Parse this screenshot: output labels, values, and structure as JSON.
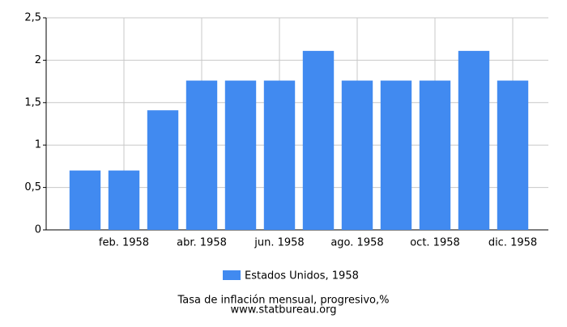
{
  "chart_data": {
    "type": "bar",
    "title": "Tasa de inflación mensual, progresivo,%",
    "source": "www.statbureau.org",
    "categories": [
      null,
      "feb. 1958",
      null,
      "abr. 1958",
      null,
      "jun. 1958",
      null,
      "ago. 1958",
      null,
      "oct. 1958",
      null,
      "dic. 1958"
    ],
    "series": [
      {
        "name": "Estados Unidos, 1958",
        "color": "#418af0",
        "values": [
          0.7,
          0.7,
          1.41,
          1.76,
          1.76,
          1.76,
          2.11,
          1.76,
          1.76,
          1.76,
          2.11,
          1.76
        ]
      }
    ],
    "ylim": [
      0,
      2.5
    ],
    "yticks": [
      0,
      {
        "value": 0.5,
        "label": "0,5"
      },
      1,
      {
        "value": 1.5,
        "label": "1,5"
      },
      2,
      {
        "value": 2.5,
        "label": "2,5"
      }
    ],
    "grid": true
  }
}
